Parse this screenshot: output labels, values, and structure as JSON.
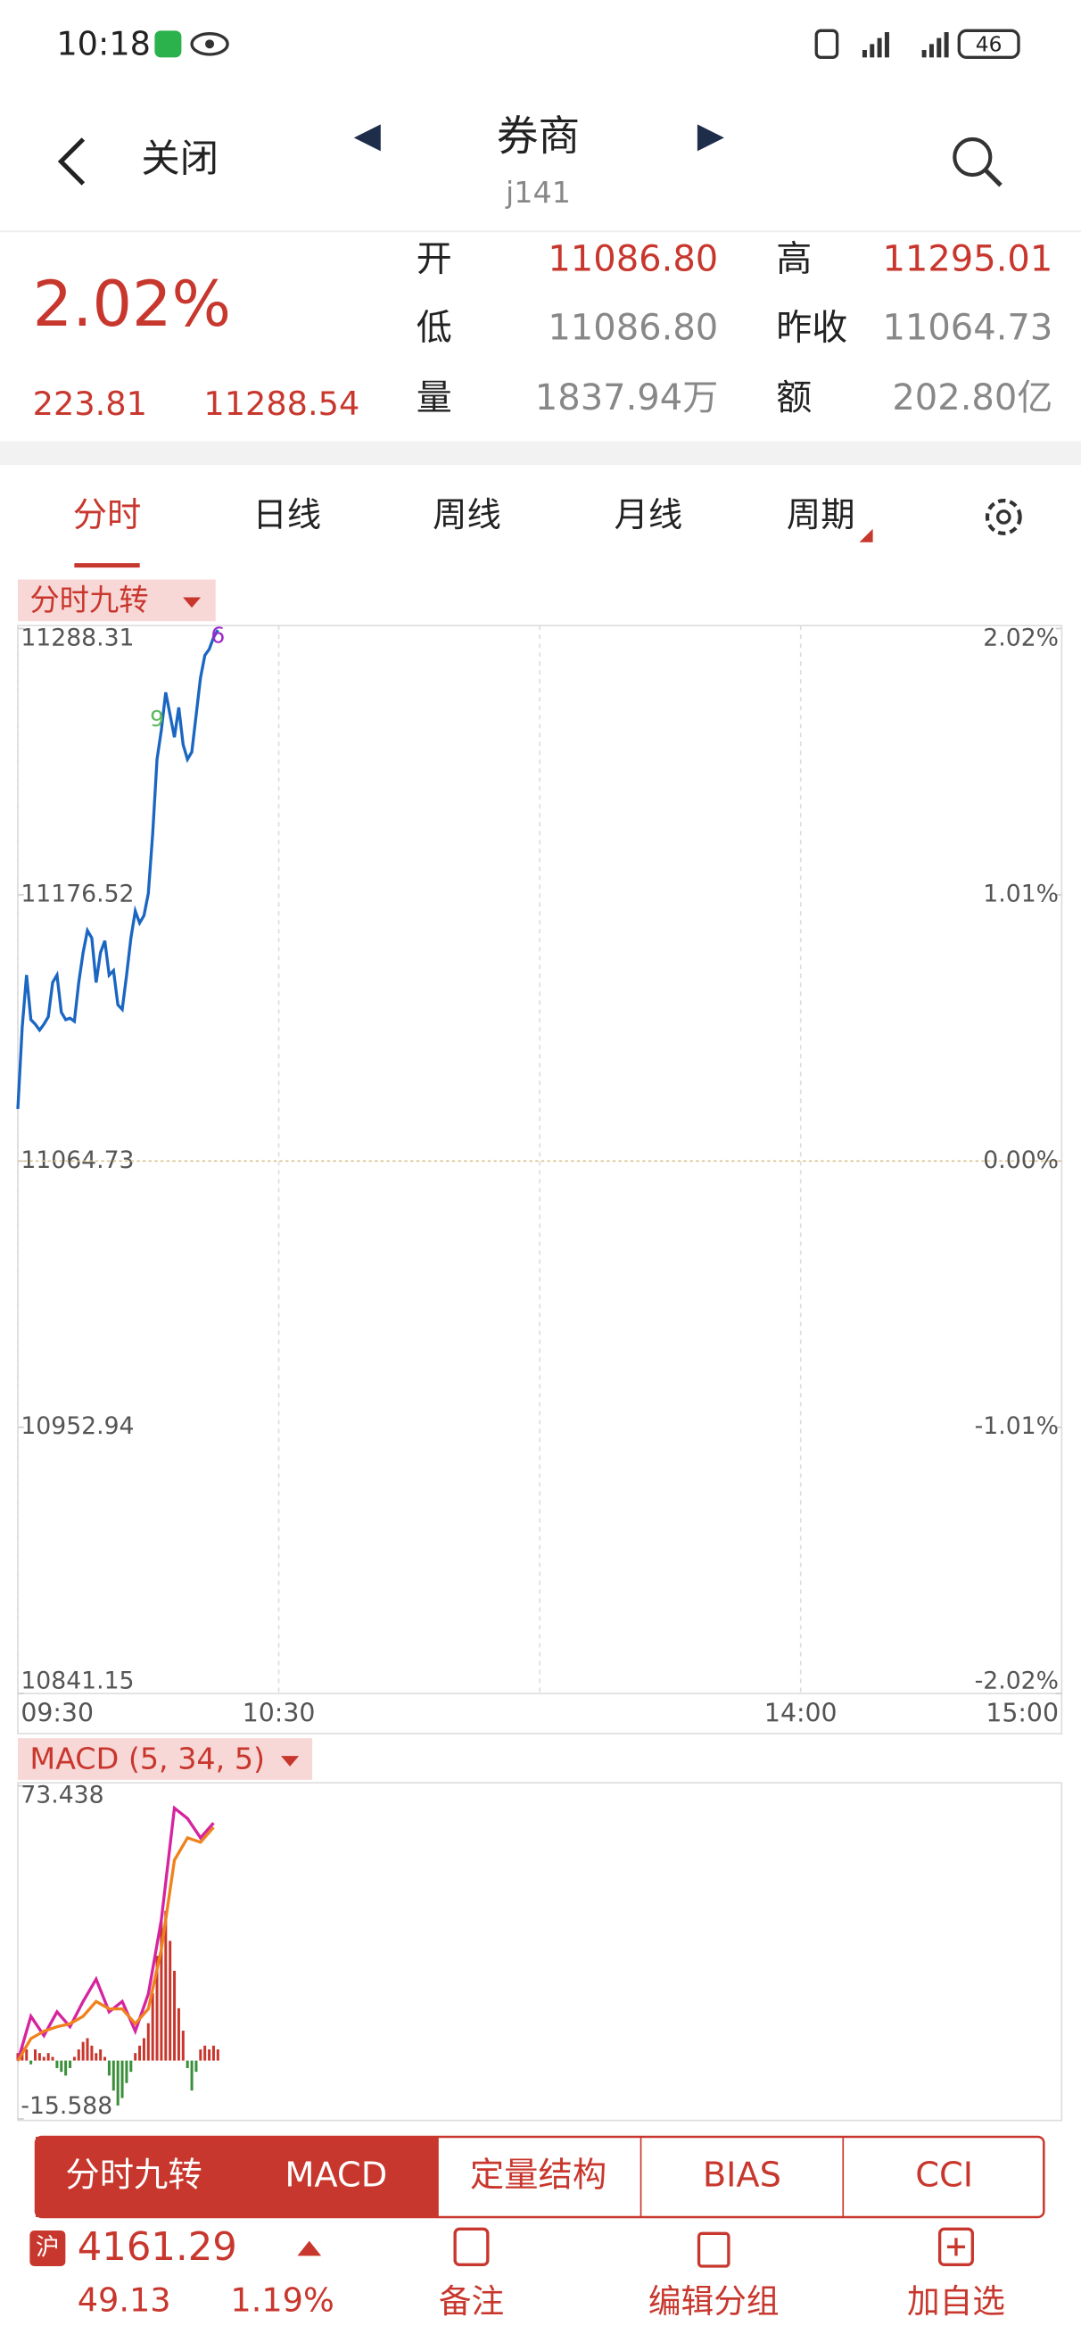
{
  "status_bar": {
    "time": "10:18",
    "battery": "46"
  },
  "header": {
    "close": "关闭",
    "title": "券商",
    "code": "j141"
  },
  "quote": {
    "change_pct": "2.02%",
    "change": "223.81",
    "price": "11288.54",
    "fields": [
      {
        "label": "开",
        "value": "11086.80"
      },
      {
        "label": "高",
        "value": "11295.01"
      },
      {
        "label": "低",
        "value": "11086.80"
      },
      {
        "label": "昨收",
        "value": "11064.73"
      },
      {
        "label": "量",
        "value": "1837.94万"
      },
      {
        "label": "额",
        "value": "202.80亿"
      }
    ]
  },
  "tabs": [
    "分时",
    "日线",
    "周线",
    "月线",
    "周期"
  ],
  "chart_data": [
    {
      "type": "line",
      "title": "分时九转",
      "x": [
        0,
        1,
        2,
        3,
        4,
        5,
        6,
        7,
        8,
        9,
        10,
        11,
        12,
        13,
        14,
        15,
        16,
        17,
        18,
        19,
        20,
        21,
        22,
        23,
        24,
        25,
        26,
        27,
        28,
        29,
        30,
        31,
        32,
        33,
        34,
        35,
        36,
        37,
        38,
        39,
        40,
        41,
        42,
        43,
        44,
        45,
        46
      ],
      "series": [
        {
          "color": "#1a66c2",
          "values": [
            11086.6,
            11120.9,
            11142.8,
            11124.1,
            11122.2,
            11119.7,
            11122.2,
            11125.3,
            11139.7,
            11142.8,
            11127.2,
            11124.1,
            11124.7,
            11123.4,
            11139.7,
            11152.2,
            11161.5,
            11158.4,
            11139.7,
            11152.2,
            11157.2,
            11142.8,
            11144.7,
            11130.3,
            11128.4,
            11142.8,
            11158.4,
            11169.7,
            11164.7,
            11167.8,
            11177.1,
            11202.1,
            11233.4,
            11245.8,
            11261.5,
            11252.1,
            11242.7,
            11255.2,
            11239.6,
            11233.4,
            11236.5,
            11252.1,
            11267.7,
            11277.1,
            11279.6,
            11284.6,
            11287.7
          ]
        }
      ],
      "xlim": [
        0,
        240
      ],
      "xticks": [
        {
          "value": 0,
          "label": "09:30"
        },
        {
          "value": 60,
          "label": "10:30"
        },
        {
          "value": 120,
          "label": null
        },
        {
          "value": 180,
          "label": "14:00"
        },
        {
          "value": 240,
          "label": "15:00"
        }
      ],
      "ylim": [
        10841.15,
        11288.31
      ],
      "yticks": [
        11288.31,
        11176.52,
        11064.73,
        10952.94,
        10841.15
      ],
      "y2lim": [
        -2.02,
        2.02
      ],
      "y2ticks": [
        {
          "value": 2.02,
          "label": "2.02%"
        },
        {
          "value": 1.01,
          "label": "1.01%"
        },
        {
          "value": 0,
          "label": "0.00%"
        },
        {
          "value": -1.01,
          "label": "-1.01%"
        },
        {
          "value": -2.02,
          "label": "-2.02%"
        }
      ],
      "annotations": [
        {
          "label": "9",
          "x": 32,
          "y": 11250,
          "color": "#5cb85c"
        },
        {
          "label": "6",
          "x": 46,
          "y": 11285,
          "color": "#9b27c9"
        }
      ]
    },
    {
      "type": "macd",
      "title": "MACD (5, 34, 5)",
      "xlim": [
        0,
        240
      ],
      "ylim": [
        -15.588,
        73.438
      ],
      "yticks": [
        73.438,
        -15.588
      ],
      "x": [
        0,
        3,
        6,
        9,
        12,
        15,
        18,
        21,
        24,
        27,
        30,
        33,
        36,
        39,
        42,
        45
      ],
      "series": [
        {
          "color": "#d6249f",
          "values": [
            -0.09,
            11.84,
            6.67,
            13.03,
            9.05,
            15.81,
            21.77,
            13.03,
            15.81,
            7.86,
            17.8,
            37.67,
            67.48,
            64.7,
            59.53,
            63.5
          ]
        },
        {
          "color": "#f0821e",
          "values": [
            -0.09,
            5.87,
            7.86,
            9.05,
            9.85,
            11.84,
            15.81,
            13.82,
            13.82,
            9.85,
            13.82,
            29.72,
            53.57,
            59.53,
            58.34,
            62.31
          ]
        }
      ],
      "histogram": {
        "up_color": "#c8372d",
        "down_color": "#3a8f3a",
        "x": [
          0,
          1,
          2,
          3,
          4,
          5,
          6,
          7,
          8,
          9,
          10,
          11,
          12,
          13,
          14,
          15,
          16,
          17,
          18,
          19,
          20,
          21,
          22,
          23,
          24,
          25,
          26,
          27,
          28,
          29,
          30,
          31,
          32,
          33,
          34,
          35,
          36,
          37,
          38,
          39,
          40,
          41,
          42,
          43,
          44,
          45,
          46
        ],
        "values": [
          2,
          4,
          3,
          -1,
          3,
          2,
          1,
          2,
          1,
          -2,
          -3,
          -4,
          -2,
          1,
          3,
          5,
          6,
          4,
          2,
          3,
          1,
          -4,
          -8,
          -12,
          -10,
          -6,
          -3,
          2,
          4,
          6,
          10,
          18,
          28,
          38,
          40,
          32,
          24,
          14,
          8,
          -2,
          -8,
          -3,
          3,
          4,
          3,
          4,
          3
        ]
      }
    }
  ],
  "bottom_tabs": [
    "分时九转",
    "MACD",
    "定量结构",
    "BIAS",
    "CCI"
  ],
  "footer": {
    "market": "沪",
    "index": "4161.29",
    "change": "49.13",
    "change_pct": "1.19%",
    "actions": [
      "备注",
      "编辑分组",
      "加自选"
    ]
  }
}
